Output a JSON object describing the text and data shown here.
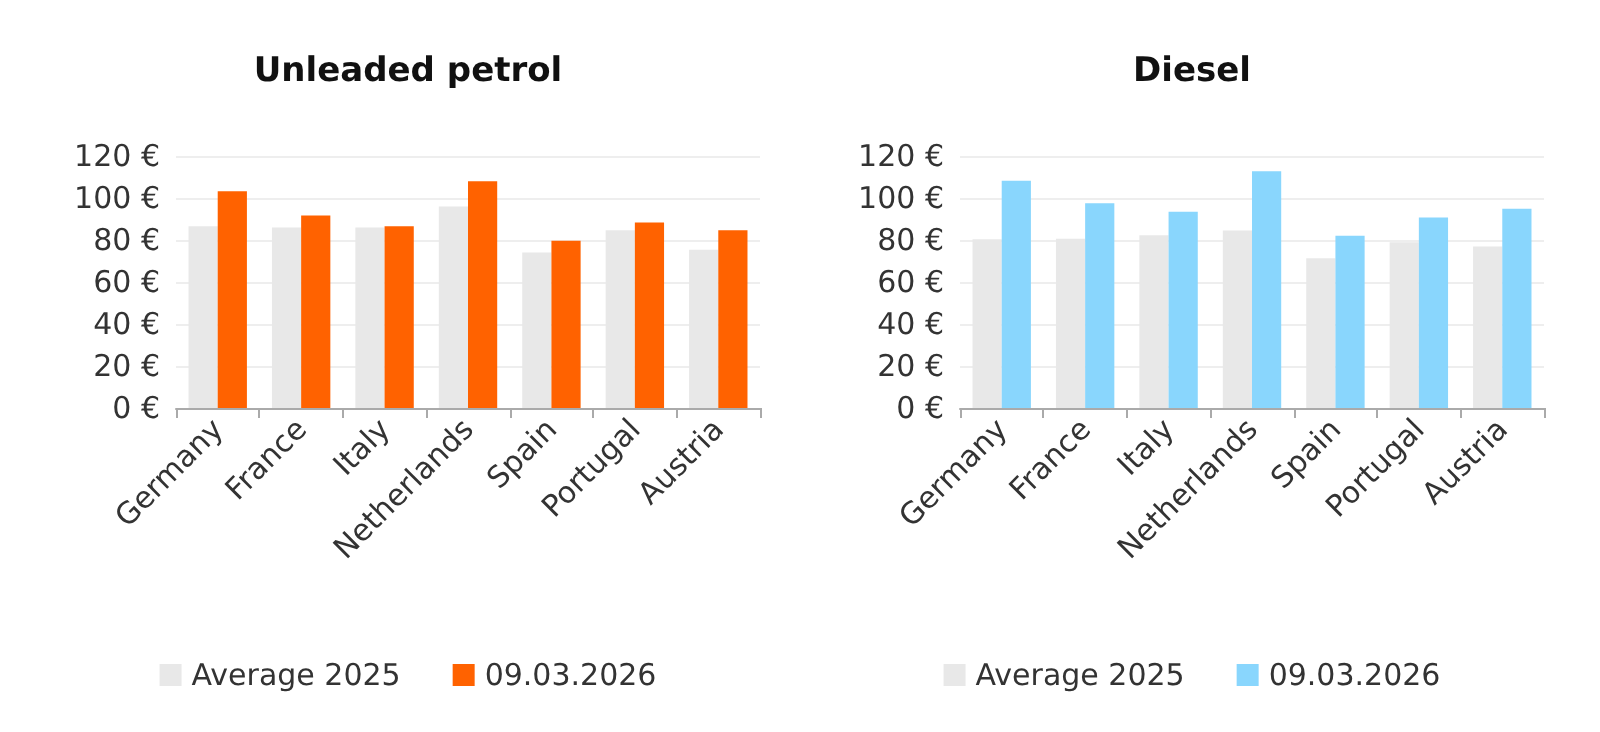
{
  "chart_data": [
    {
      "type": "bar",
      "title": "Unleaded petrol",
      "categories": [
        "Germany",
        "France",
        "Italy",
        "Netherlands",
        "Spain",
        "Portugal",
        "Austria"
      ],
      "series": [
        {
          "name": "Average 2025",
          "color": "#e8e8e8",
          "values": [
            86.6,
            86,
            86,
            95.9,
            74,
            84.7,
            75.4
          ]
        },
        {
          "name": "09.03.2026",
          "color": "#ff6200",
          "values": [
            103.2,
            91.7,
            86.6,
            108,
            79.6,
            88.3,
            84.7
          ]
        }
      ],
      "ylim": [
        0,
        120
      ],
      "yticks": [
        {
          "value": 0,
          "label": "0 €"
        },
        {
          "value": 20,
          "label": "20 €"
        },
        {
          "value": 40,
          "label": "40 €"
        },
        {
          "value": 60,
          "label": "60 €"
        },
        {
          "value": 80,
          "label": "80 €"
        },
        {
          "value": 100,
          "label": "100 €"
        },
        {
          "value": 120,
          "label": "120 €"
        }
      ],
      "grid": "y",
      "legend": "bottom"
    },
    {
      "type": "bar",
      "title": "Diesel",
      "categories": [
        "Germany",
        "France",
        "Italy",
        "Netherlands",
        "Spain",
        "Portugal",
        "Austria"
      ],
      "series": [
        {
          "name": "Average 2025",
          "color": "#e8e8e8",
          "values": [
            80.3,
            80.6,
            82.3,
            84.5,
            71.3,
            78.9,
            76.9
          ]
        },
        {
          "name": "09.03.2026",
          "color": "#89d6fd",
          "values": [
            108.2,
            97.5,
            93.5,
            112.7,
            82,
            90.7,
            94.9
          ]
        }
      ],
      "ylim": [
        0,
        120
      ],
      "yticks": [
        {
          "value": 0,
          "label": "0 €"
        },
        {
          "value": 20,
          "label": "20 €"
        },
        {
          "value": 40,
          "label": "40 €"
        },
        {
          "value": 60,
          "label": "60 €"
        },
        {
          "value": 80,
          "label": "80 €"
        },
        {
          "value": 100,
          "label": "100 €"
        },
        {
          "value": 120,
          "label": "120 €"
        }
      ],
      "grid": "y",
      "legend": "bottom"
    }
  ]
}
